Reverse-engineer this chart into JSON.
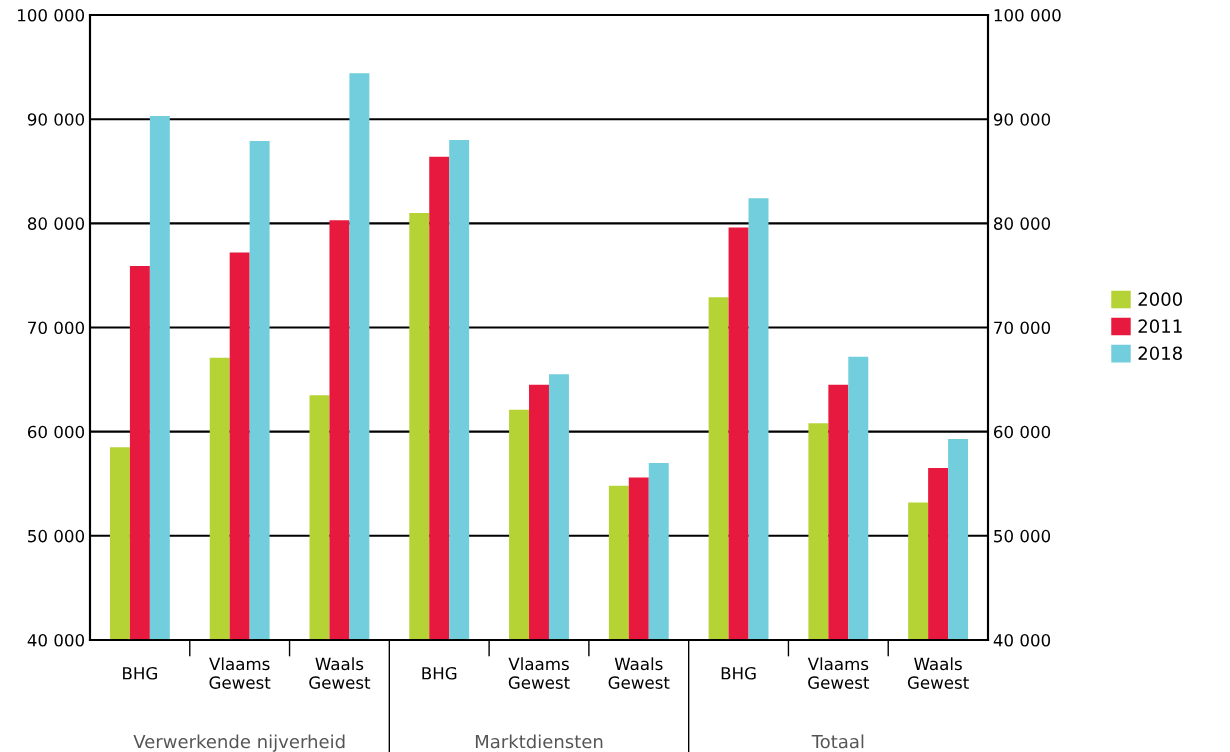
{
  "chart_data": {
    "type": "bar",
    "categories": [
      "BHG",
      "Vlaams\nGewest",
      "Waals\nGewest",
      "BHG",
      "Vlaams\nGewest",
      "Waals\nGewest",
      "BHG",
      "Vlaams\nGewest",
      "Waals\nGewest"
    ],
    "annotations": [
      "Verwerkende nijverheid",
      "Marktdiensten",
      "Totaal"
    ],
    "series": [
      {
        "name": "2000",
        "color": "#b5d334",
        "values": [
          58500,
          67100,
          63500,
          81000,
          62100,
          54800,
          72900,
          60800,
          53200
        ]
      },
      {
        "name": "2011",
        "color": "#e8193e",
        "values": [
          75900,
          77200,
          80300,
          86400,
          64500,
          55600,
          79600,
          64500,
          56500
        ]
      },
      {
        "name": "2018",
        "color": "#72cddd",
        "values": [
          90300,
          87900,
          94400,
          88000,
          65500,
          57000,
          82400,
          67200,
          59300
        ]
      }
    ],
    "ylim": [
      40000,
      100000
    ],
    "yticks": [
      {
        "value": 40000,
        "label": "40 000"
      },
      {
        "value": 50000,
        "label": "50 000"
      },
      {
        "value": 60000,
        "label": "60 000"
      },
      {
        "value": 70000,
        "label": "70 000"
      },
      {
        "value": 80000,
        "label": "80 000"
      },
      {
        "value": 90000,
        "label": "90 000"
      },
      {
        "value": 100000,
        "label": "100 000"
      }
    ],
    "y2lim": [
      40000,
      100000
    ],
    "y2ticks": [
      {
        "value": 40000,
        "label": "40 000"
      },
      {
        "value": 50000,
        "label": "50 000"
      },
      {
        "value": 60000,
        "label": "60 000"
      },
      {
        "value": 70000,
        "label": "70 000"
      },
      {
        "value": 80000,
        "label": "80 000"
      },
      {
        "value": 90000,
        "label": "90 000"
      },
      {
        "value": 100000,
        "label": "100 000"
      }
    ],
    "grid": "y",
    "legend": "right"
  }
}
